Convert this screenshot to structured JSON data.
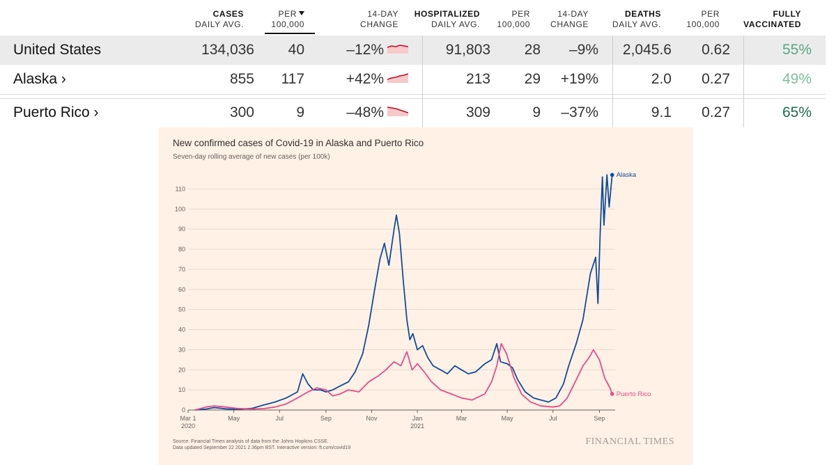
{
  "table": {
    "headers": [
      {
        "bold": "CASES",
        "sub": "DAILY AVG."
      },
      {
        "bold": "",
        "sub": "PER",
        "sub2": "100,000",
        "sorted": true
      },
      {
        "bold": "",
        "sub": "14-DAY",
        "sub2": "CHANGE"
      },
      {
        "bold": "HOSPITALIZED",
        "sub": "DAILY AVG."
      },
      {
        "bold": "",
        "sub": "PER",
        "sub2": "100,000"
      },
      {
        "bold": "",
        "sub": "14-DAY",
        "sub2": "CHANGE"
      },
      {
        "bold": "DEATHS",
        "sub": "DAILY AVG."
      },
      {
        "bold": "",
        "sub": "PER",
        "sub2": "100,000"
      },
      {
        "bold": "FULLY",
        "sub": "VACCINATED"
      }
    ],
    "rows": [
      {
        "name": "United States",
        "cases": "134,036",
        "cases_per": "40",
        "cases_change": "–12%",
        "hosp": "91,803",
        "hosp_per": "28",
        "hosp_change": "–9%",
        "deaths": "2,045.6",
        "deaths_per": "0.62",
        "vacc": "55%",
        "vacc_color": "#5aa885"
      },
      {
        "name": "Alaska ›",
        "cases": "855",
        "cases_per": "117",
        "cases_change": "+42%",
        "hosp": "213",
        "hosp_per": "29",
        "hosp_change": "+19%",
        "deaths": "2.0",
        "deaths_per": "0.27",
        "vacc": "49%",
        "vacc_color": "#7cbf9e"
      },
      {
        "name": "Puerto Rico ›",
        "cases": "300",
        "cases_per": "9",
        "cases_change": "–48%",
        "hosp": "309",
        "hosp_per": "9",
        "hosp_change": "–37%",
        "deaths": "9.1",
        "deaths_per": "0.27",
        "vacc": "65%",
        "vacc_color": "#1f6b4f"
      }
    ],
    "spark_color": "#d0021b",
    "spark_fill": "#f6c9cb"
  },
  "chart_data": {
    "type": "line",
    "title": "New confirmed cases of Covid-19 in Alaska and Puerto Rico",
    "subtitle": "Seven-day rolling average of new cases (per 100k)",
    "source_line1": "Source: Financial Times analysis of data from the Johns Hopkins CSSE.",
    "source_line2": "Data updated September 22 2021 2.36pm BST. Interactive version: ft.com/covid19",
    "brand": "FINANCIAL TIMES",
    "ylim": [
      0,
      115
    ],
    "yticks": [
      0,
      10,
      20,
      30,
      40,
      50,
      60,
      70,
      80,
      90,
      100,
      110
    ],
    "xrange": [
      "2020-03-01",
      "2021-09-22"
    ],
    "xticks": [
      {
        "date": "2020-03-01",
        "label": "Mar 1",
        "label2": "2020"
      },
      {
        "date": "2020-05-01",
        "label": "May"
      },
      {
        "date": "2020-07-01",
        "label": "Jul"
      },
      {
        "date": "2020-09-01",
        "label": "Sep"
      },
      {
        "date": "2020-11-01",
        "label": "Nov"
      },
      {
        "date": "2021-01-01",
        "label": "Jan",
        "label2": "2021"
      },
      {
        "date": "2021-03-01",
        "label": "Mar"
      },
      {
        "date": "2021-05-01",
        "label": "May"
      },
      {
        "date": "2021-07-01",
        "label": "Jul"
      },
      {
        "date": "2021-09-01",
        "label": "Sep"
      }
    ],
    "series": [
      {
        "name": "Alaska",
        "color": "#0f4c9c",
        "points": [
          [
            "2020-03-10",
            0
          ],
          [
            "2020-03-25",
            0.5
          ],
          [
            "2020-04-05",
            1.2
          ],
          [
            "2020-04-20",
            0.6
          ],
          [
            "2020-05-05",
            0.3
          ],
          [
            "2020-05-25",
            0.8
          ],
          [
            "2020-06-10",
            2.5
          ],
          [
            "2020-06-25",
            4
          ],
          [
            "2020-07-10",
            6
          ],
          [
            "2020-07-25",
            9
          ],
          [
            "2020-08-01",
            18
          ],
          [
            "2020-08-08",
            13
          ],
          [
            "2020-08-15",
            10
          ],
          [
            "2020-08-25",
            10
          ],
          [
            "2020-09-01",
            9
          ],
          [
            "2020-09-10",
            10
          ],
          [
            "2020-09-20",
            12
          ],
          [
            "2020-10-01",
            14
          ],
          [
            "2020-10-10",
            19
          ],
          [
            "2020-10-20",
            28
          ],
          [
            "2020-10-28",
            42
          ],
          [
            "2020-11-05",
            60
          ],
          [
            "2020-11-12",
            75
          ],
          [
            "2020-11-18",
            83
          ],
          [
            "2020-11-24",
            72
          ],
          [
            "2020-12-01",
            90
          ],
          [
            "2020-12-04",
            97
          ],
          [
            "2020-12-08",
            88
          ],
          [
            "2020-12-13",
            65
          ],
          [
            "2020-12-18",
            45
          ],
          [
            "2020-12-22",
            35
          ],
          [
            "2020-12-26",
            38
          ],
          [
            "2021-01-01",
            30
          ],
          [
            "2021-01-08",
            32
          ],
          [
            "2021-01-15",
            26
          ],
          [
            "2021-01-22",
            22
          ],
          [
            "2021-02-01",
            20
          ],
          [
            "2021-02-10",
            18
          ],
          [
            "2021-02-20",
            22
          ],
          [
            "2021-03-01",
            20
          ],
          [
            "2021-03-10",
            18
          ],
          [
            "2021-03-20",
            19
          ],
          [
            "2021-04-01",
            23
          ],
          [
            "2021-04-10",
            25
          ],
          [
            "2021-04-17",
            33
          ],
          [
            "2021-04-22",
            24
          ],
          [
            "2021-05-01",
            23
          ],
          [
            "2021-05-08",
            21
          ],
          [
            "2021-05-15",
            15
          ],
          [
            "2021-05-25",
            9
          ],
          [
            "2021-06-05",
            6
          ],
          [
            "2021-06-15",
            5
          ],
          [
            "2021-06-25",
            4
          ],
          [
            "2021-07-05",
            6
          ],
          [
            "2021-07-15",
            13
          ],
          [
            "2021-07-22",
            22
          ],
          [
            "2021-08-01",
            33
          ],
          [
            "2021-08-10",
            45
          ],
          [
            "2021-08-20",
            68
          ],
          [
            "2021-08-27",
            76
          ],
          [
            "2021-08-30",
            53
          ],
          [
            "2021-09-02",
            88
          ],
          [
            "2021-09-05",
            116
          ],
          [
            "2021-09-07",
            92
          ],
          [
            "2021-09-11",
            117
          ],
          [
            "2021-09-14",
            101
          ],
          [
            "2021-09-18",
            117
          ]
        ]
      },
      {
        "name": "Puerto Rico",
        "color": "#e34d8b",
        "points": [
          [
            "2020-03-10",
            0
          ],
          [
            "2020-03-25",
            1.5
          ],
          [
            "2020-04-05",
            2
          ],
          [
            "2020-04-20",
            1.5
          ],
          [
            "2020-05-05",
            0.8
          ],
          [
            "2020-05-25",
            0.5
          ],
          [
            "2020-06-10",
            0.7
          ],
          [
            "2020-06-25",
            1.5
          ],
          [
            "2020-07-10",
            3
          ],
          [
            "2020-07-25",
            6
          ],
          [
            "2020-08-08",
            9
          ],
          [
            "2020-08-20",
            11
          ],
          [
            "2020-09-01",
            10
          ],
          [
            "2020-09-10",
            7
          ],
          [
            "2020-09-20",
            8
          ],
          [
            "2020-10-01",
            10
          ],
          [
            "2020-10-15",
            9
          ],
          [
            "2020-10-28",
            14
          ],
          [
            "2020-11-10",
            17
          ],
          [
            "2020-11-20",
            20
          ],
          [
            "2020-12-01",
            24
          ],
          [
            "2020-12-10",
            22
          ],
          [
            "2020-12-18",
            29
          ],
          [
            "2020-12-25",
            20
          ],
          [
            "2021-01-01",
            23
          ],
          [
            "2021-01-10",
            19
          ],
          [
            "2021-01-20",
            14
          ],
          [
            "2021-02-01",
            10
          ],
          [
            "2021-02-15",
            8
          ],
          [
            "2021-03-01",
            6
          ],
          [
            "2021-03-15",
            5
          ],
          [
            "2021-04-01",
            8
          ],
          [
            "2021-04-10",
            14
          ],
          [
            "2021-04-17",
            22
          ],
          [
            "2021-04-23",
            33
          ],
          [
            "2021-04-30",
            28
          ],
          [
            "2021-05-10",
            16
          ],
          [
            "2021-05-20",
            8
          ],
          [
            "2021-06-01",
            4
          ],
          [
            "2021-06-15",
            2
          ],
          [
            "2021-07-01",
            1.5
          ],
          [
            "2021-07-10",
            2
          ],
          [
            "2021-07-20",
            6
          ],
          [
            "2021-08-01",
            15
          ],
          [
            "2021-08-10",
            22
          ],
          [
            "2021-08-18",
            26
          ],
          [
            "2021-08-24",
            30
          ],
          [
            "2021-09-01",
            25
          ],
          [
            "2021-09-08",
            16
          ],
          [
            "2021-09-15",
            11
          ],
          [
            "2021-09-18",
            8
          ]
        ]
      }
    ]
  }
}
